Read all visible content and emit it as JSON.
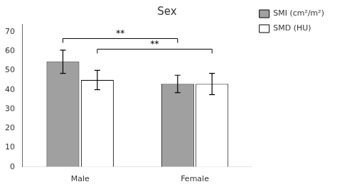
{
  "chart_data": {
    "type": "bar",
    "title": "Sex",
    "categories": [
      "Male",
      "Female"
    ],
    "series": [
      {
        "name": "SMI (cm²/m²)",
        "color": "#a0a0a0",
        "values": [
          54.5,
          43.0
        ],
        "errors": [
          6.0,
          4.5
        ]
      },
      {
        "name": "SMD (HU)",
        "color": "#ffffff",
        "values": [
          45.0,
          43.0
        ],
        "errors": [
          5.0,
          5.5
        ]
      }
    ],
    "annotations": [
      {
        "text": "**",
        "from": {
          "category": "Male",
          "series": "SMI (cm²/m²)"
        },
        "to": {
          "category": "Female",
          "series": "SMI (cm²/m²)"
        },
        "y": 66.5
      },
      {
        "text": "**",
        "from": {
          "category": "Male",
          "series": "SMD (HU)"
        },
        "to": {
          "category": "Female",
          "series": "SMD (HU)"
        },
        "y": 61.0
      }
    ],
    "ylim": [
      0,
      74
    ],
    "yticks": [
      0,
      10,
      20,
      30,
      40,
      50,
      60,
      70
    ],
    "grid": false,
    "legend": "right"
  }
}
